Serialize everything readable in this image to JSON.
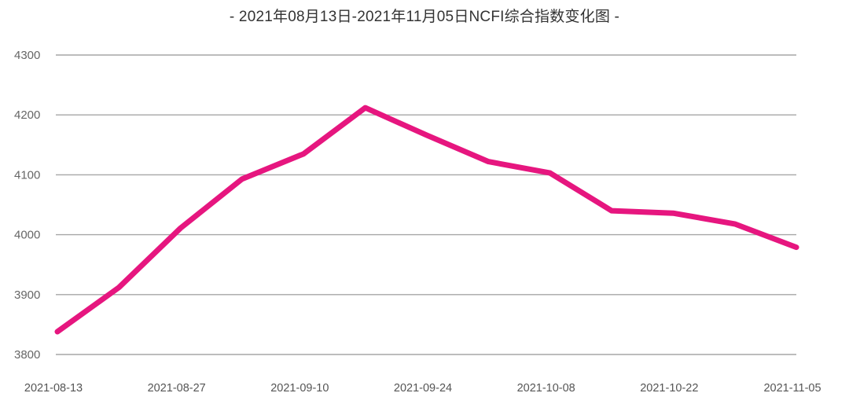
{
  "title": "- 2021年08月13日-2021年11月05日NCFI综合指数变化图 -",
  "colors": {
    "series": "#e6167f",
    "grid": "#a6a6a6",
    "text": "#333333"
  },
  "chart_data": {
    "type": "line",
    "title": "- 2021年08月13日-2021年11月05日NCFI综合指数变化图 -",
    "xlabel": "",
    "ylabel": "",
    "ylim": [
      3800,
      4300
    ],
    "yticks": [
      4300,
      4200,
      4100,
      4000,
      3900,
      3800
    ],
    "xtick_labels": [
      "2021-08-13",
      "2021-08-27",
      "2021-09-10",
      "2021-09-24",
      "2021-10-08",
      "2021-10-22",
      "2021-11-05"
    ],
    "grid": true,
    "legend": null,
    "x": [
      "2021-08-13",
      "2021-08-20",
      "2021-08-27",
      "2021-09-03",
      "2021-09-10",
      "2021-09-17",
      "2021-09-24",
      "2021-10-01",
      "2021-10-08",
      "2021-10-15",
      "2021-10-22",
      "2021-10-29",
      "2021-11-05"
    ],
    "series": [
      {
        "name": "NCFI综合指数",
        "values": [
          3838,
          3912,
          4011,
          4093,
          4135,
          4212,
          4166,
          4122,
          4103,
          4040,
          4036,
          4018,
          3979
        ]
      }
    ]
  }
}
